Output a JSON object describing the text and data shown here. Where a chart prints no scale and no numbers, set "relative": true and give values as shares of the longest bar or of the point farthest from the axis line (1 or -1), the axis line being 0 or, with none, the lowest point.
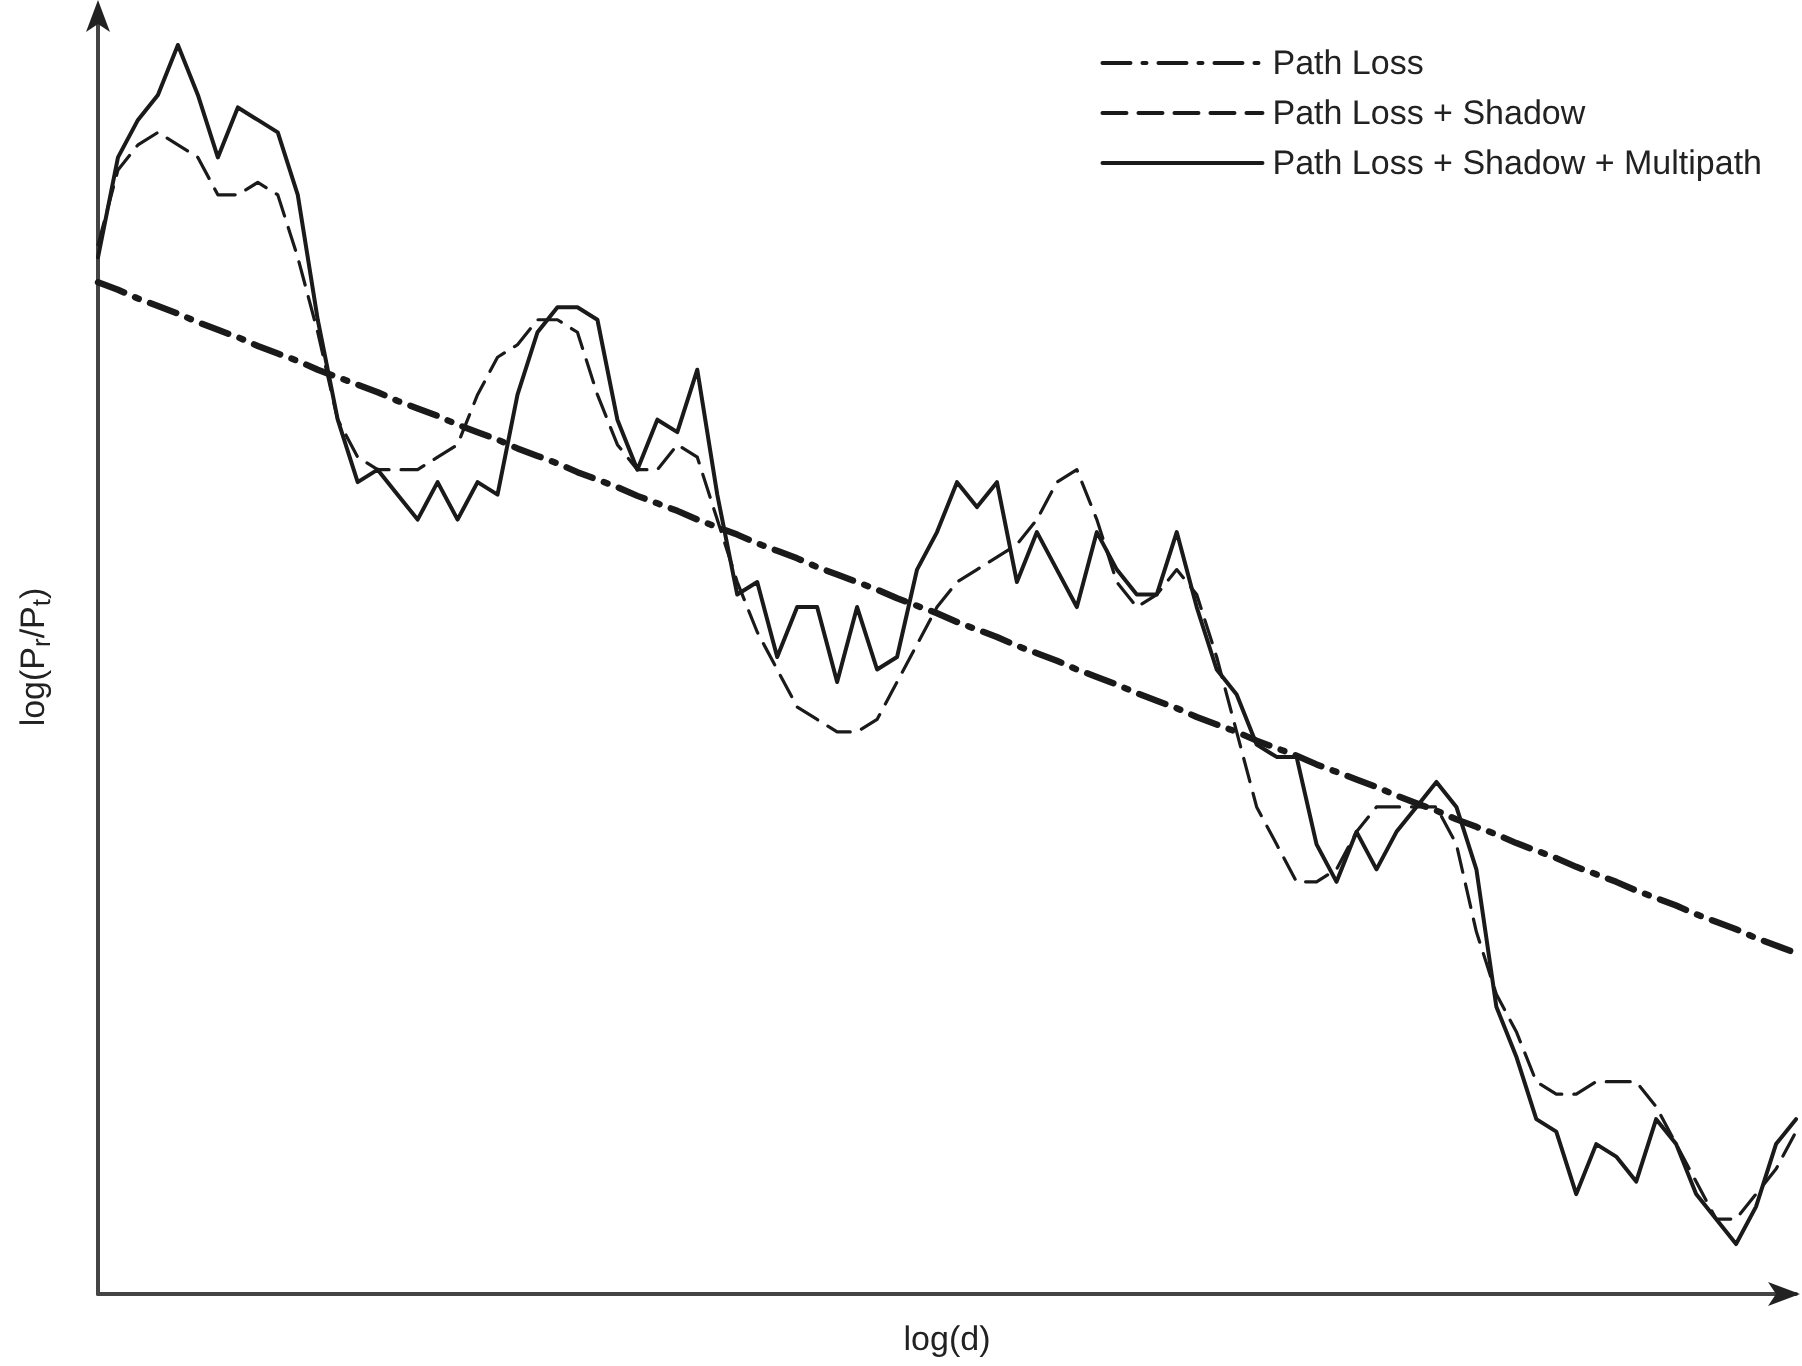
{
  "chart_data": {
    "type": "line",
    "relative": true,
    "xlabel": "log(d)",
    "ylabel": "log(P$_{r}$/P$_{t}$)",
    "grid": false,
    "legend": "top right",
    "marker": "none",
    "categories": [
      null,
      null,
      null,
      null,
      null,
      null,
      null,
      null,
      null,
      null,
      null,
      null,
      null,
      null,
      null,
      null,
      null,
      null,
      null,
      null,
      null,
      null,
      null,
      null,
      null,
      null,
      null,
      null,
      null,
      null,
      null,
      null,
      null,
      null,
      null,
      null,
      null,
      null,
      null,
      null,
      null,
      null,
      null,
      null,
      null,
      null,
      null,
      null,
      null,
      null,
      null,
      null,
      null,
      null,
      null,
      null,
      null,
      null,
      null,
      null,
      null,
      null,
      null,
      null,
      null,
      null,
      null,
      null,
      null,
      null,
      null,
      null,
      null,
      null,
      null,
      null,
      null,
      null,
      null,
      null,
      null,
      null,
      null,
      null,
      null,
      null
    ],
    "series": [
      {
        "name": "Path Loss",
        "color": "#1a1a1a",
        "line_style": "dashdot",
        "values": [
          0.81,
          0.804,
          0.797,
          0.791,
          0.785,
          0.778,
          0.772,
          0.766,
          0.759,
          0.753,
          0.747,
          0.74,
          0.734,
          0.728,
          0.722,
          0.715,
          0.709,
          0.703,
          0.696,
          0.69,
          0.684,
          0.677,
          0.671,
          0.665,
          0.658,
          0.652,
          0.646,
          0.639,
          0.633,
          0.627,
          0.62,
          0.614,
          0.608,
          0.601,
          0.595,
          0.589,
          0.582,
          0.576,
          0.57,
          0.564,
          0.557,
          0.551,
          0.545,
          0.538,
          0.532,
          0.526,
          0.519,
          0.513,
          0.507,
          0.5,
          0.494,
          0.488,
          0.481,
          0.475,
          0.469,
          0.462,
          0.456,
          0.45,
          0.443,
          0.437,
          0.431,
          0.424,
          0.418,
          0.412,
          0.406,
          0.399,
          0.393,
          0.387,
          0.38,
          0.374,
          0.368,
          0.361,
          0.355,
          0.349,
          0.342,
          0.336,
          0.33,
          0.323,
          0.317,
          0.311,
          0.304,
          0.298,
          0.292,
          0.285,
          0.279,
          0.273
        ]
      },
      {
        "name": "Path Loss + Shadow",
        "color": "#1a1a1a",
        "line_style": "dashed",
        "values": [
          0.84,
          0.9,
          0.92,
          0.93,
          0.92,
          0.91,
          0.88,
          0.88,
          0.89,
          0.88,
          0.83,
          0.77,
          0.7,
          0.67,
          0.66,
          0.66,
          0.66,
          0.67,
          0.68,
          0.72,
          0.75,
          0.76,
          0.78,
          0.78,
          0.77,
          0.72,
          0.68,
          0.66,
          0.66,
          0.68,
          0.67,
          0.62,
          0.57,
          0.53,
          0.5,
          0.47,
          0.46,
          0.45,
          0.45,
          0.46,
          0.49,
          0.52,
          0.55,
          0.57,
          0.58,
          0.59,
          0.6,
          0.62,
          0.65,
          0.66,
          0.62,
          0.57,
          0.55,
          0.56,
          0.58,
          0.56,
          0.51,
          0.45,
          0.39,
          0.36,
          0.33,
          0.33,
          0.34,
          0.37,
          0.39,
          0.39,
          0.39,
          0.39,
          0.36,
          0.29,
          0.24,
          0.21,
          0.17,
          0.16,
          0.16,
          0.17,
          0.17,
          0.17,
          0.15,
          0.12,
          0.09,
          0.06,
          0.06,
          0.08,
          0.1,
          0.13
        ]
      },
      {
        "name": "Path Loss + Shadow + Multipath",
        "color": "#1a1a1a",
        "line_style": "solid",
        "values": [
          0.83,
          0.91,
          0.94,
          0.96,
          1,
          0.96,
          0.91,
          0.95,
          0.94,
          0.93,
          0.88,
          0.78,
          0.7,
          0.65,
          0.66,
          0.64,
          0.62,
          0.65,
          0.62,
          0.65,
          0.64,
          0.72,
          0.77,
          0.79,
          0.79,
          0.78,
          0.7,
          0.66,
          0.7,
          0.69,
          0.74,
          0.64,
          0.56,
          0.57,
          0.51,
          0.55,
          0.55,
          0.49,
          0.55,
          0.5,
          0.51,
          0.58,
          0.61,
          0.65,
          0.63,
          0.65,
          0.57,
          0.61,
          0.58,
          0.55,
          0.61,
          0.58,
          0.56,
          0.56,
          0.61,
          0.55,
          0.5,
          0.48,
          0.44,
          0.43,
          0.43,
          0.36,
          0.33,
          0.37,
          0.34,
          0.37,
          0.39,
          0.41,
          0.39,
          0.34,
          0.23,
          0.19,
          0.14,
          0.13,
          0.08,
          0.12,
          0.11,
          0.09,
          0.14,
          0.12,
          0.08,
          0.06,
          0.04,
          0.07,
          0.12,
          0.14
        ]
      }
    ]
  }
}
